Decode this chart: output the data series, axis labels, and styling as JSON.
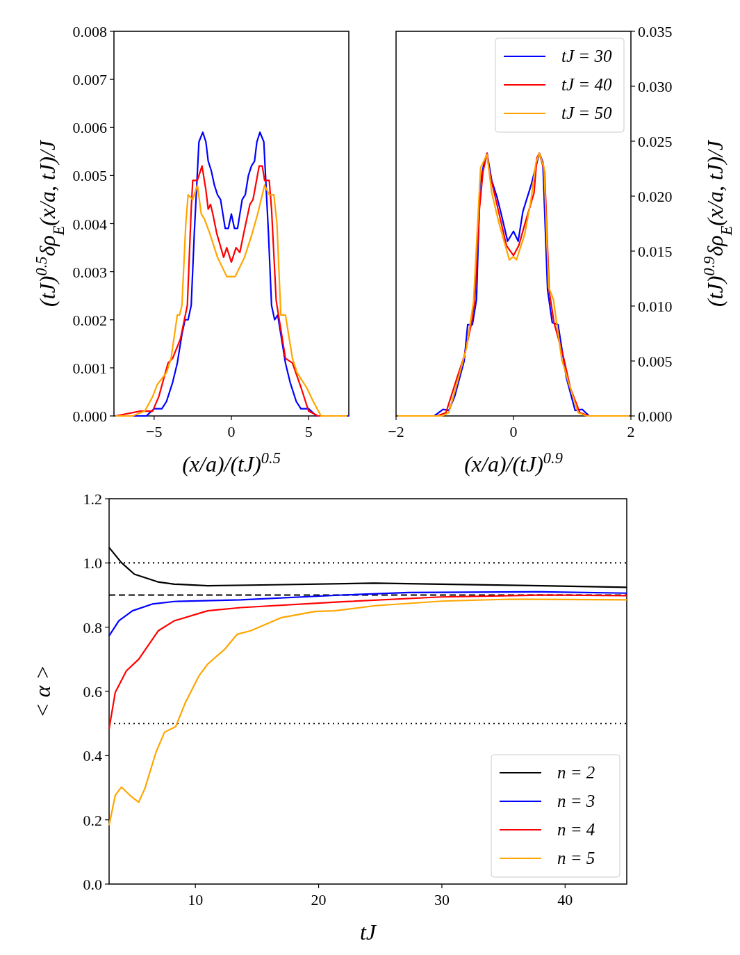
{
  "chart_data": [
    {
      "type": "line",
      "xlabel": "(x/a)/(tJ)$^{0.5}$",
      "ylabel": "(tJ)$^{0.5}$δρ$_{E}$(x/a, tJ)/J",
      "xlim": [
        -7.6,
        7.6
      ],
      "ylim": [
        0,
        0.008
      ],
      "xticks": [
        {
          "value": -5,
          "label": "−5"
        },
        0,
        5
      ],
      "yticks": [
        {
          "value": 0,
          "label": "0.000"
        },
        {
          "value": 0.001,
          "label": "0.001"
        },
        {
          "value": 0.002,
          "label": "0.002"
        },
        {
          "value": 0.003,
          "label": "0.003"
        },
        {
          "value": 0.004,
          "label": "0.004"
        },
        {
          "value": 0.005,
          "label": "0.005"
        },
        {
          "value": 0.006,
          "label": "0.006"
        },
        {
          "value": 0.007,
          "label": "0.007"
        },
        {
          "value": 0.008,
          "label": "0.008"
        }
      ],
      "grid": false,
      "legend": false,
      "line_style": "solid",
      "marker": "none",
      "series": [
        {
          "color": "#0000ff",
          "x": [
            -7.5,
            -6,
            -5.5,
            -5,
            -4.5,
            -4.2,
            -3.8,
            -3.5,
            -3.2,
            -3,
            -2.8,
            -2.6,
            -2.4,
            -2.1,
            -1.85,
            -1.65,
            -1.5,
            -1.3,
            -1.1,
            -0.9,
            -0.7,
            -0.4,
            -0.2,
            0,
            0.2,
            0.4,
            0.7,
            0.9,
            1.1,
            1.3,
            1.5,
            1.65,
            1.85,
            2.1,
            2.4,
            2.6,
            2.8,
            3,
            3.2,
            3.5,
            3.8,
            4.2,
            4.5,
            5,
            5.5,
            6,
            7.6
          ],
          "values": [
            0,
            0,
            0,
            0.00015,
            0.00015,
            0.0003,
            0.0007,
            0.0011,
            0.0017,
            0.002,
            0.002,
            0.0023,
            0.0038,
            0.0057,
            0.0059,
            0.0057,
            0.0053,
            0.0051,
            0.0048,
            0.0046,
            0.0045,
            0.0039,
            0.0039,
            0.0042,
            0.0039,
            0.0039,
            0.0045,
            0.0046,
            0.005,
            0.0052,
            0.0053,
            0.0057,
            0.0059,
            0.0057,
            0.0038,
            0.0023,
            0.002,
            0.0021,
            0.0017,
            0.0011,
            0.0007,
            0.0003,
            0.00015,
            0.00015,
            0,
            0,
            0
          ]
        },
        {
          "color": "#ff0000",
          "x": [
            -7.5,
            -5.9,
            -5.1,
            -4.7,
            -4.1,
            -3.8,
            -3.3,
            -2.85,
            -2.6,
            -2.5,
            -2.2,
            -1.9,
            -1.65,
            -1.5,
            -1.35,
            -1.2,
            -0.95,
            -0.5,
            -0.3,
            0,
            0.3,
            0.55,
            0.8,
            1.2,
            1.4,
            1.8,
            2,
            2.15,
            2.45,
            2.6,
            2.9,
            3.5,
            3.95,
            4.5,
            5,
            5.6,
            7.5
          ],
          "values": [
            0,
            0.0001,
            0.0001,
            0.0004,
            0.0011,
            0.0012,
            0.0016,
            0.0023,
            0.0043,
            0.0049,
            0.0049,
            0.0052,
            0.0047,
            0.0043,
            0.0044,
            0.0042,
            0.0038,
            0.0033,
            0.0035,
            0.0032,
            0.0035,
            0.0034,
            0.0038,
            0.0044,
            0.0045,
            0.0052,
            0.0052,
            0.0049,
            0.0049,
            0.0043,
            0.0024,
            0.0012,
            0.0011,
            0.0006,
            0.0001,
            0,
            0
          ]
        },
        {
          "color": "#ffa500",
          "x": [
            -7.5,
            -6.4,
            -5.6,
            -5.1,
            -4.8,
            -4.2,
            -3.9,
            -3.5,
            -3.35,
            -3.2,
            -2.95,
            -2.8,
            -2.5,
            -2.2,
            -1.95,
            -1.75,
            -1.4,
            -0.9,
            -0.45,
            -0.3,
            0,
            0.25,
            0.55,
            0.85,
            1.35,
            1.7,
            2.15,
            2.45,
            2.75,
            2.95,
            3.2,
            3.5,
            3.95,
            4.25,
            4.85,
            5.3,
            5.8,
            6.5,
            7.5
          ],
          "values": [
            0,
            0,
            0.0001,
            0.0004,
            0.00065,
            0.0009,
            0.0012,
            0.0021,
            0.0021,
            0.0023,
            0.004,
            0.0046,
            0.0045,
            0.0048,
            0.0042,
            0.0041,
            0.0038,
            0.0033,
            0.003,
            0.0029,
            0.0029,
            0.0029,
            0.0031,
            0.0033,
            0.0038,
            0.0042,
            0.0048,
            0.0046,
            0.0046,
            0.004,
            0.0021,
            0.0021,
            0.0012,
            0.0009,
            0.0006,
            0.0003,
            0,
            0,
            0
          ]
        }
      ]
    },
    {
      "type": "line",
      "xlabel": "(x/a)/(tJ)$^{0.9}$",
      "y2label": "(tJ)$^{0.9}$δρ$_{E}$(x/a, tJ)/J",
      "xlim": [
        -2,
        2
      ],
      "y2lim": [
        0,
        0.035
      ],
      "xticks": [
        {
          "value": -2,
          "label": "−2"
        },
        0,
        2
      ],
      "y2ticks": [
        {
          "value": 0,
          "label": "0.000"
        },
        {
          "value": 0.005,
          "label": "0.005"
        },
        {
          "value": 0.01,
          "label": "0.010"
        },
        {
          "value": 0.015,
          "label": "0.015"
        },
        {
          "value": 0.02,
          "label": "0.020"
        },
        {
          "value": 0.025,
          "label": "0.025"
        },
        {
          "value": 0.03,
          "label": "0.030"
        },
        {
          "value": 0.035,
          "label": "0.035"
        }
      ],
      "grid": false,
      "legend": "top right",
      "line_style": "solid",
      "marker": "none",
      "series": [
        {
          "name": "tJ = 30",
          "color": "#0000ff",
          "axis": "y2",
          "x": [
            -1.97,
            -1.35,
            -1.2,
            -1.1,
            -1,
            -0.84,
            -0.78,
            -0.7,
            -0.63,
            -0.57,
            -0.51,
            -0.45,
            -0.37,
            -0.28,
            -0.21,
            -0.1,
            0,
            0.08,
            0.16,
            0.3,
            0.44,
            0.5,
            0.58,
            0.66,
            0.76,
            0.9,
            1.05,
            1.17,
            1.29,
            1.97
          ],
          "values": [
            0,
            0,
            0.0006,
            0.0005,
            0.0018,
            0.005,
            0.0083,
            0.0083,
            0.0106,
            0.021,
            0.0228,
            0.0239,
            0.0214,
            0.0199,
            0.0184,
            0.0159,
            0.0168,
            0.0159,
            0.0186,
            0.021,
            0.0239,
            0.0231,
            0.0115,
            0.0085,
            0.0083,
            0.0035,
            0.0005,
            0.0006,
            0,
            0
          ]
        },
        {
          "name": "tJ = 40",
          "color": "#ff0000",
          "axis": "y2",
          "x": [
            -1.97,
            -1.3,
            -1.15,
            -0.96,
            -0.84,
            -0.72,
            -0.66,
            -0.58,
            -0.52,
            -0.45,
            -0.41,
            -0.31,
            -0.21,
            -0.12,
            0,
            0.09,
            0.19,
            0.35,
            0.4,
            0.44,
            0.53,
            0.61,
            0.69,
            0.85,
            0.97,
            1.13,
            1.29,
            1.97
          ],
          "values": [
            0,
            0,
            0.0003,
            0.0035,
            0.0054,
            0.0083,
            0.0104,
            0.0188,
            0.0222,
            0.0239,
            0.0222,
            0.0199,
            0.0176,
            0.0155,
            0.0146,
            0.0155,
            0.0174,
            0.0203,
            0.0235,
            0.0239,
            0.0222,
            0.0113,
            0.0085,
            0.0054,
            0.0025,
            0.0003,
            0,
            0
          ]
        },
        {
          "name": "tJ = 50",
          "color": "#ffa500",
          "axis": "y2",
          "x": [
            -1.97,
            -1.22,
            -1.1,
            -0.96,
            -0.8,
            -0.68,
            -0.56,
            -0.45,
            -0.37,
            -0.25,
            -0.15,
            -0.07,
            0,
            0.05,
            0.19,
            0.3,
            0.38,
            0.44,
            0.52,
            0.6,
            0.68,
            0.82,
            0.94,
            1.1,
            1.25,
            1.97
          ],
          "values": [
            0,
            0,
            0.0003,
            0.003,
            0.0062,
            0.0104,
            0.0226,
            0.0238,
            0.0203,
            0.0176,
            0.0157,
            0.0142,
            0.0145,
            0.0142,
            0.0165,
            0.0197,
            0.023,
            0.0239,
            0.0226,
            0.0117,
            0.0106,
            0.0052,
            0.003,
            0.0003,
            0,
            0
          ]
        }
      ]
    },
    {
      "type": "line",
      "xlabel": "tJ",
      "ylabel": "< α >",
      "xlim": [
        3,
        45
      ],
      "ylim": [
        0,
        1.2
      ],
      "xticks": [
        10,
        20,
        30,
        40
      ],
      "yticks": [
        {
          "value": 0,
          "label": "0.0"
        },
        {
          "value": 0.2,
          "label": "0.2"
        },
        {
          "value": 0.4,
          "label": "0.4"
        },
        {
          "value": 0.6,
          "label": "0.6"
        },
        {
          "value": 0.8,
          "label": "0.8"
        },
        {
          "value": 1,
          "label": "1.0"
        },
        {
          "value": 1.2,
          "label": "1.2"
        }
      ],
      "grid": false,
      "legend": "bottom right",
      "line_style": "solid",
      "marker": "none",
      "ref_lines": [
        {
          "axis": "y",
          "value": 1,
          "line_style": "dotted",
          "color": "#000000"
        },
        {
          "axis": "y",
          "value": 0.9,
          "line_style": "dashed",
          "color": "#000000"
        },
        {
          "axis": "y",
          "value": 0.5,
          "line_style": "dotted",
          "color": "#000000"
        }
      ],
      "series": [
        {
          "name": "n = 2",
          "color": "#000000",
          "x": [
            3,
            4,
            5.05,
            6.95,
            8.3,
            11,
            16.4,
            24.5,
            29.9,
            38.1,
            45
          ],
          "values": [
            1.048,
            1.001,
            0.965,
            0.941,
            0.934,
            0.929,
            0.932,
            0.937,
            0.934,
            0.929,
            0.924
          ]
        },
        {
          "name": "n = 3",
          "color": "#0000ff",
          "x": [
            3,
            3.8,
            4.9,
            6.5,
            8.3,
            13.7,
            21.9,
            27.3,
            38.1,
            45
          ],
          "values": [
            0.773,
            0.82,
            0.851,
            0.872,
            0.88,
            0.885,
            0.9,
            0.908,
            0.91,
            0.906
          ]
        },
        {
          "name": "n = 4",
          "color": "#ff0000",
          "x": [
            3,
            3.5,
            4.4,
            5.4,
            7,
            8.3,
            11,
            13.7,
            21.9,
            29.9,
            38.1,
            45
          ],
          "values": [
            0.483,
            0.597,
            0.664,
            0.7,
            0.789,
            0.82,
            0.851,
            0.861,
            0.879,
            0.894,
            0.9,
            0.898
          ]
        },
        {
          "name": "n = 5",
          "color": "#ffa500",
          "x": [
            3,
            3.5,
            4,
            4.7,
            5.4,
            5.9,
            6.8,
            7.5,
            8.4,
            9.2,
            10.3,
            11,
            12.4,
            13.4,
            14.5,
            17,
            19.7,
            21.3,
            24.6,
            27.3,
            30,
            35.5,
            45
          ],
          "values": [
            0.183,
            0.276,
            0.302,
            0.276,
            0.255,
            0.297,
            0.41,
            0.473,
            0.49,
            0.566,
            0.649,
            0.685,
            0.732,
            0.778,
            0.789,
            0.83,
            0.849,
            0.851,
            0.867,
            0.874,
            0.881,
            0.887,
            0.885
          ]
        }
      ]
    }
  ]
}
